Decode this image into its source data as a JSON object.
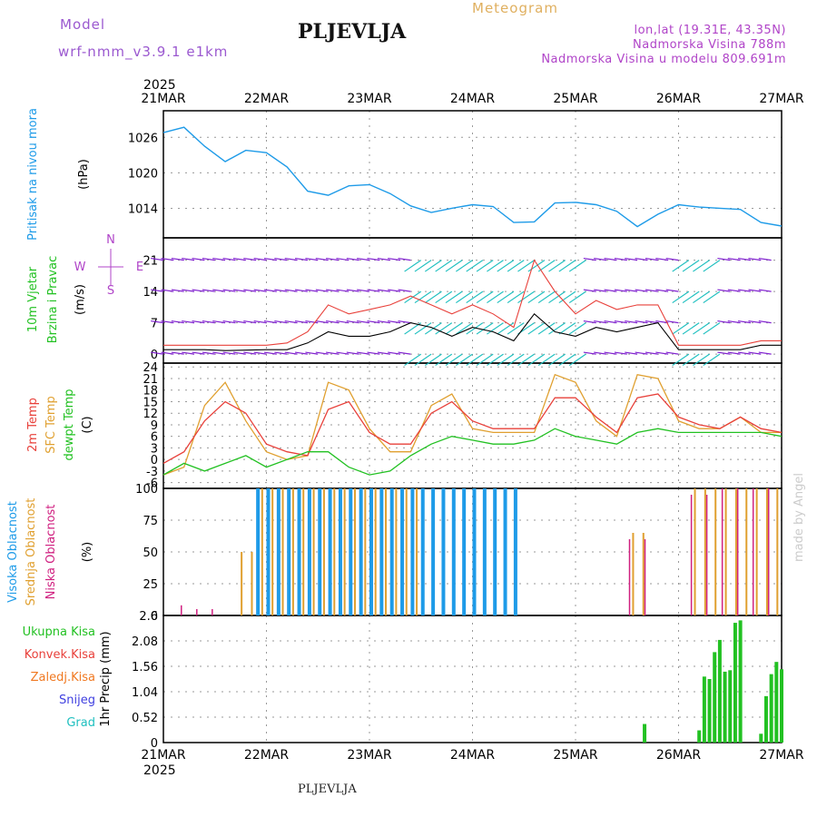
{
  "header": {
    "model_label": "Model",
    "model_run": "wrf-nmm_v3.9.1 e1km",
    "station": "PLJEVLJA",
    "product": "Meteogram",
    "lonlat": "lon,lat (19.31E, 43.35N)",
    "elevation": "Nadmorska Visina 788m",
    "model_elevation": "Nadmorska Visina u modelu 809.691m",
    "footer_station": "PLJEVLJA",
    "watermark": "made by Angel"
  },
  "time_axis": {
    "year_label": "2025",
    "ticks": [
      "21MAR",
      "22MAR",
      "23MAR",
      "24MAR",
      "25MAR",
      "26MAR",
      "27MAR"
    ]
  },
  "panel_labels": {
    "pressure": [
      "Pritisak na nivou mora",
      "(hPa)"
    ],
    "wind": [
      "10m Vjetar",
      "Brzina i Pravac",
      "(m/s)"
    ],
    "wind_compass": {
      "n": "N",
      "w": "W",
      "e": "E",
      "s": "S"
    },
    "temp": [
      "2m Temp",
      "SFC Temp",
      "dewpt Temp",
      "(C)"
    ],
    "cloud": [
      "Visoka Oblacnost",
      "Srednja Oblacnost",
      "Niska Oblacnost",
      "(%)"
    ],
    "precip": [
      "Ukupna Kisa",
      "Konvek.Kisa",
      "Zaledj.Kisa",
      "Snijeg",
      "Grad",
      "1hr Precip (mm)"
    ]
  },
  "colors": {
    "pressure": "#1e9be8",
    "t2m": "#e8403a",
    "tsfc": "#e0a030",
    "dewpt": "#22c122",
    "high_cloud": "#1e9be8",
    "mid_cloud": "#e0a030",
    "low_cloud": "#d02080",
    "total_precip": "#22c122",
    "conv_precip": "#e8403a",
    "freezing_precip": "#f07820",
    "snow": "#4040e0",
    "hail": "#20c0c0",
    "wind_speed": "#000000",
    "wind_gust": "#e8403a",
    "wind_barbs_calm": "#8020d0",
    "wind_barbs_strong": "#20c0c0"
  },
  "chart_data": [
    {
      "type": "line",
      "name": "pressure",
      "ylabel": "(hPa)",
      "yticks": [
        1014,
        1020,
        1026
      ],
      "ylim": [
        1009,
        1030.5
      ],
      "x": [
        0,
        0.2,
        0.4,
        0.6,
        0.8,
        1.0,
        1.2,
        1.4,
        1.6,
        1.8,
        2.0,
        2.2,
        2.4,
        2.6,
        2.8,
        3.0,
        3.2,
        3.4,
        3.6,
        3.8,
        4.0,
        4.2,
        4.4,
        4.6,
        4.8,
        5.0,
        5.2,
        5.4,
        5.6,
        5.8,
        6.0
      ],
      "series": [
        {
          "values": [
            1026.8,
            1027.7,
            1024.5,
            1021.9,
            1023.8,
            1023.4,
            1021.0,
            1016.9,
            1016.2,
            1017.8,
            1018.0,
            1016.5,
            1014.4,
            1013.3,
            1014.0,
            1014.6,
            1014.3,
            1011.6,
            1011.7,
            1014.9,
            1015.0,
            1014.6,
            1013.5,
            1010.9,
            1013.0,
            1014.6,
            1014.2,
            1014.0,
            1013.8,
            1011.6,
            1011.0
          ]
        }
      ]
    },
    {
      "type": "line",
      "name": "wind",
      "ylabel": "(m/s)",
      "yticks": [
        0,
        7,
        14,
        21
      ],
      "ylim": [
        -2,
        26
      ],
      "x": [
        0,
        0.2,
        0.4,
        0.6,
        0.8,
        1.0,
        1.2,
        1.4,
        1.6,
        1.8,
        2.0,
        2.2,
        2.4,
        2.6,
        2.8,
        3.0,
        3.2,
        3.4,
        3.6,
        3.8,
        4.0,
        4.2,
        4.4,
        4.6,
        4.8,
        5.0,
        5.2,
        5.4,
        5.6,
        5.8,
        6.0
      ],
      "series": [
        {
          "values": [
            1,
            1,
            1,
            0.8,
            0.9,
            1,
            1,
            2.5,
            5,
            4,
            4,
            5,
            7,
            6,
            4,
            6,
            5,
            3,
            9,
            5,
            4,
            6,
            5,
            6,
            7,
            1,
            1,
            1,
            1,
            2,
            2
          ]
        },
        {
          "values": [
            2,
            2,
            2,
            2,
            2,
            2,
            2.5,
            5,
            11,
            9,
            10,
            11,
            13,
            11,
            9,
            11,
            9,
            6,
            21,
            14,
            9,
            12,
            10,
            11,
            11,
            2,
            2,
            2,
            2,
            3,
            3
          ]
        }
      ]
    },
    {
      "type": "line",
      "name": "temperature",
      "ylabel": "(C)",
      "yticks": [
        -6,
        -3,
        0,
        3,
        6,
        9,
        12,
        15,
        18,
        21,
        24
      ],
      "ylim": [
        -7.5,
        25
      ],
      "x": [
        0,
        0.2,
        0.4,
        0.6,
        0.8,
        1.0,
        1.2,
        1.4,
        1.6,
        1.8,
        2.0,
        2.2,
        2.4,
        2.6,
        2.8,
        3.0,
        3.2,
        3.4,
        3.6,
        3.8,
        4.0,
        4.2,
        4.4,
        4.6,
        4.8,
        5.0,
        5.2,
        5.4,
        5.6,
        5.8,
        6.0
      ],
      "series": [
        {
          "values": [
            -1,
            2,
            10,
            15,
            12,
            4,
            2,
            1,
            13,
            15,
            7,
            4,
            4,
            12,
            15,
            10,
            8,
            8,
            8,
            16,
            16,
            11,
            7,
            16,
            17,
            11,
            9,
            8,
            11,
            8,
            7
          ]
        },
        {
          "values": [
            -4,
            -2,
            14,
            20,
            10,
            2,
            0,
            1,
            20,
            18,
            8,
            2,
            2,
            14,
            17,
            8,
            7,
            7,
            7,
            22,
            20,
            10,
            6,
            22,
            21,
            10,
            8,
            8,
            11,
            7,
            7
          ]
        },
        {
          "values": [
            -4,
            -1,
            -3,
            -1,
            1,
            -2,
            0,
            2,
            2,
            -2,
            -4,
            -3,
            1,
            4,
            6,
            5,
            4,
            4,
            5,
            8,
            6,
            5,
            4,
            7,
            8,
            7,
            7,
            7,
            7,
            7,
            6
          ]
        }
      ]
    },
    {
      "type": "bar",
      "name": "cloud_cover",
      "ylabel": "(%)",
      "yticks": [
        0,
        25,
        50,
        75,
        100
      ],
      "ylim": [
        0,
        100
      ],
      "x_day_blocks": [
        [
          0.85,
          1.05,
          100,
          50
        ],
        [
          1.05,
          2.6,
          100,
          100
        ],
        [
          2.95,
          3.45,
          100,
          0
        ],
        [
          4.9,
          4.95,
          0,
          65
        ],
        [
          5.25,
          6.0,
          0,
          100
        ]
      ],
      "series": [
        {
          "name": "Visoka Oblacnost",
          "values": [
            0,
            0,
            0,
            0,
            0,
            100,
            100,
            100,
            100,
            100,
            100,
            100,
            100,
            100,
            100,
            100,
            100,
            100,
            0,
            0,
            0,
            0,
            0,
            0,
            0,
            0,
            0,
            0,
            0,
            0,
            0
          ]
        },
        {
          "name": "Srednja Oblacnost",
          "values": [
            0,
            0,
            0,
            0,
            50,
            100,
            100,
            100,
            100,
            100,
            100,
            100,
            100,
            0,
            0,
            0,
            0,
            0,
            0,
            0,
            0,
            0,
            0,
            65,
            0,
            0,
            100,
            100,
            100,
            100,
            100
          ]
        },
        {
          "name": "Niska Oblacnost",
          "values": [
            0,
            8,
            5,
            0,
            0,
            0,
            0,
            0,
            0,
            0,
            0,
            0,
            0,
            0,
            0,
            0,
            0,
            0,
            0,
            0,
            0,
            0,
            0,
            60,
            0,
            0,
            95,
            100,
            100,
            100,
            100
          ]
        }
      ]
    },
    {
      "type": "bar",
      "name": "precipitation",
      "ylabel": "1hr Precip (mm)",
      "yticks": [
        0,
        0.52,
        1.04,
        1.56,
        2.08,
        2.6
      ],
      "ylim": [
        0,
        2.6
      ],
      "x": [
        4.67,
        5.2,
        5.25,
        5.3,
        5.35,
        5.4,
        5.45,
        5.5,
        5.55,
        5.6,
        5.65,
        5.8,
        5.85,
        5.9,
        5.95,
        6.0
      ],
      "series": [
        {
          "name": "Ukupna Kisa",
          "values": [
            0.38,
            0.25,
            1.35,
            1.3,
            1.85,
            2.1,
            1.45,
            1.48,
            2.45,
            2.5,
            0.0,
            0.18,
            0.95,
            1.4,
            1.65,
            1.5
          ]
        }
      ]
    }
  ]
}
